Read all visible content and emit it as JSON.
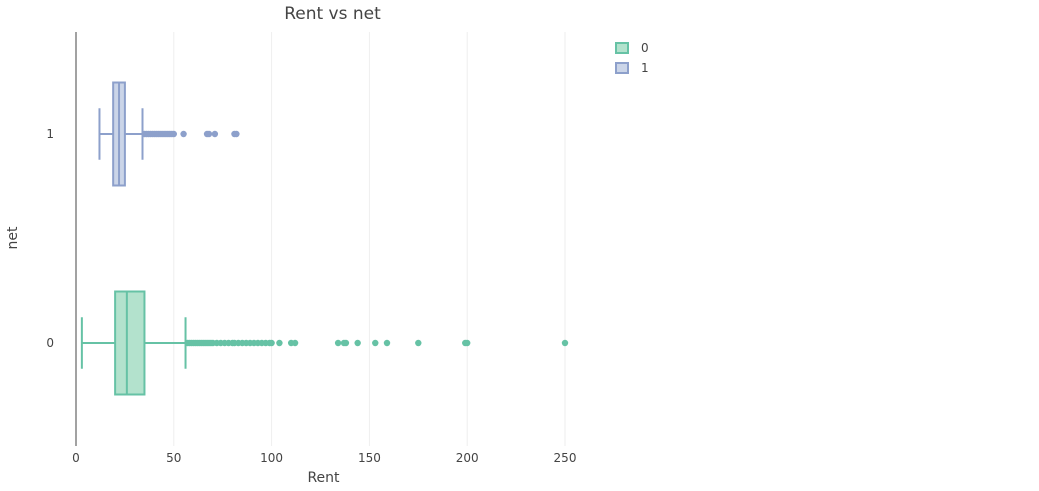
{
  "chart_data": {
    "type": "box",
    "title": "Rent vs net",
    "xlabel": "Rent",
    "ylabel": "net",
    "orientation": "horizontal",
    "xlim": [
      0,
      280
    ],
    "xticks": [
      0,
      50,
      100,
      150,
      200,
      250
    ],
    "categories": [
      "0",
      "1"
    ],
    "grid": true,
    "legend_position": "top-right",
    "series": [
      {
        "name": "0",
        "category": "0",
        "color": "#66c2a5",
        "fill": "#b3e2cd",
        "min": 3,
        "q1": 20,
        "median": 26,
        "q3": 35,
        "max": 56,
        "outliers": [
          57,
          58,
          59,
          60,
          61,
          62,
          63,
          64,
          65,
          66,
          67,
          68,
          69,
          70,
          72,
          74,
          76,
          78,
          80,
          81,
          83,
          85,
          87,
          89,
          91,
          93,
          95,
          97,
          99,
          100,
          104,
          110,
          112,
          134,
          137,
          138,
          144,
          153,
          159,
          175,
          199,
          200,
          250
        ]
      },
      {
        "name": "1",
        "category": "1",
        "color": "#8da0cb",
        "fill": "#cbd5e8",
        "min": 12,
        "q1": 19,
        "median": 22,
        "q3": 25,
        "max": 34,
        "outliers": [
          35,
          36,
          37,
          38,
          39,
          40,
          41,
          42,
          43,
          44,
          45,
          46,
          47,
          48,
          49,
          50,
          55,
          67,
          68,
          71,
          81,
          82
        ]
      }
    ]
  },
  "legend": {
    "items": [
      {
        "label": "0",
        "stroke": "#66c2a5",
        "fill": "#b3e2cd"
      },
      {
        "label": "1",
        "stroke": "#8da0cb",
        "fill": "#cbd5e8"
      }
    ]
  }
}
